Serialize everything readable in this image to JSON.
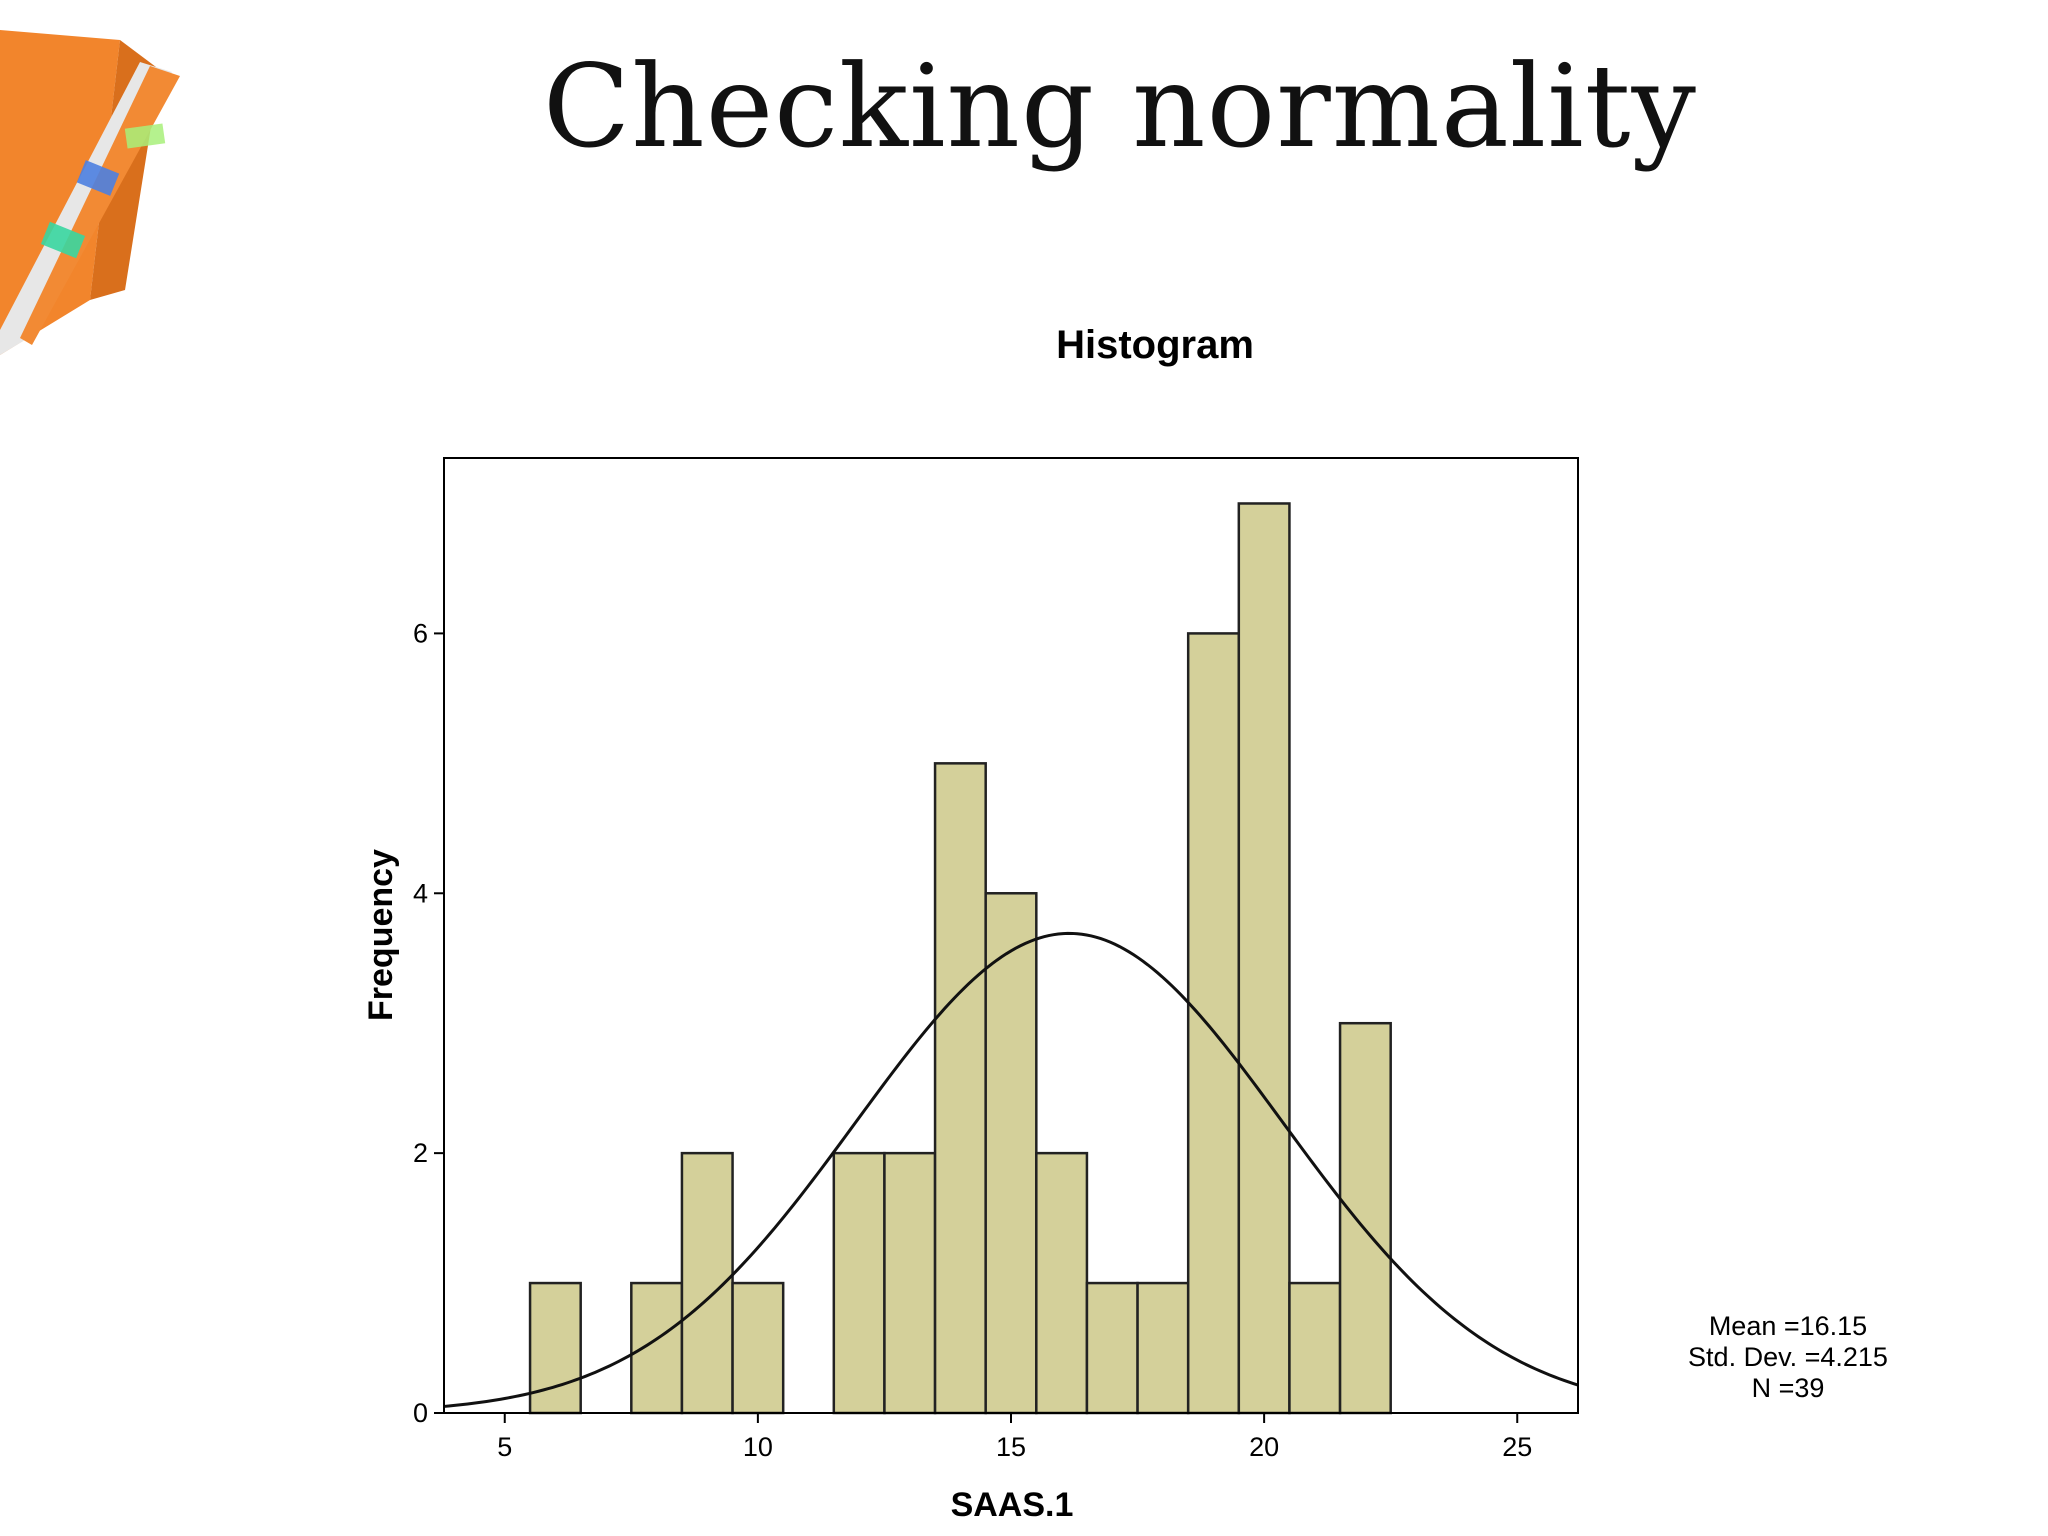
{
  "slide": {
    "title": "Checking normality"
  },
  "chart_data": {
    "type": "bar",
    "title": "Histogram",
    "xlabel": "SAAS.1",
    "ylabel": "Frequency",
    "xlim": [
      3.8,
      26.2
    ],
    "ylim": [
      0,
      7.35
    ],
    "x_ticks": [
      5,
      10,
      15,
      20,
      25
    ],
    "y_ticks": [
      0,
      2,
      4,
      6
    ],
    "bin_width": 1,
    "bins": [
      {
        "x": 6,
        "count": 1
      },
      {
        "x": 8,
        "count": 1
      },
      {
        "x": 9,
        "count": 2
      },
      {
        "x": 10,
        "count": 1
      },
      {
        "x": 12,
        "count": 2
      },
      {
        "x": 13,
        "count": 2
      },
      {
        "x": 14,
        "count": 5
      },
      {
        "x": 15,
        "count": 4
      },
      {
        "x": 16,
        "count": 2
      },
      {
        "x": 17,
        "count": 1
      },
      {
        "x": 18,
        "count": 1
      },
      {
        "x": 19,
        "count": 6
      },
      {
        "x": 20,
        "count": 7
      },
      {
        "x": 21,
        "count": 1
      },
      {
        "x": 22,
        "count": 3
      }
    ],
    "normal_curve": {
      "mean": 16.15,
      "std_dev": 4.215,
      "n": 39
    },
    "stats": {
      "mean_label": "Mean =16.15",
      "std_label": "Std. Dev. =4.215",
      "n_label": "N =39"
    },
    "bar_color": "#d4d09a",
    "bar_stroke": "#222222"
  }
}
